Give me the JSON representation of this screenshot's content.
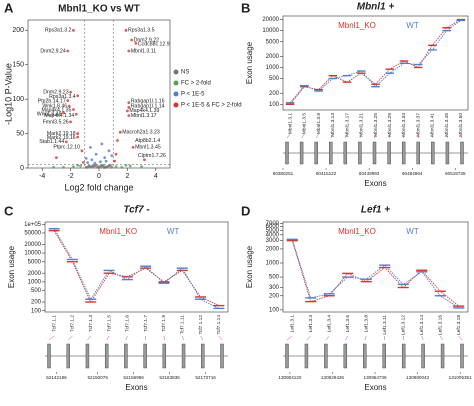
{
  "chart_data": [
    {
      "type": "scatter",
      "panel": "A",
      "title": "Mbnl1_KO vs WT",
      "x_label": "Log2 fold change",
      "y_label": "-Log10 P-Value",
      "xlim": [
        -5,
        5
      ],
      "xticks": [
        -4,
        -2,
        0,
        2,
        4
      ],
      "ylim": [
        0,
        215
      ],
      "yticks": [
        0,
        50,
        100,
        150,
        200
      ],
      "vlines": [
        -1,
        1
      ],
      "hline": 5,
      "series": [
        {
          "name": "NS",
          "color": "#777777",
          "x": [
            -0.8,
            -0.5,
            -0.3,
            -0.1,
            0.1,
            0.3,
            0.5,
            0.7,
            -0.6,
            0.4,
            -0.2,
            0.2,
            0.6,
            -0.9,
            0.9,
            -0.4,
            0.0,
            0.8,
            -0.7,
            0.35
          ],
          "values": [
            1,
            2,
            3,
            1,
            2,
            4,
            1,
            3,
            2,
            1,
            4,
            3,
            2,
            1,
            1,
            3,
            2,
            4,
            3,
            1
          ]
        },
        {
          "name": "FC > 2-fold",
          "color": "#5aa05a",
          "x": [
            -2.5,
            -1.8,
            -1.3,
            -3.2,
            1.2,
            1.6,
            2.2,
            3.0,
            -1.5,
            1.9
          ],
          "values": [
            1,
            2,
            3,
            1,
            2,
            1,
            3,
            2,
            4,
            4
          ]
        },
        {
          "name": "P < 1E-5",
          "color": "#4f7fd0",
          "x": [
            -0.8,
            -0.5,
            -0.2,
            0.1,
            0.4,
            0.7,
            -0.6,
            0.5,
            0.9,
            -0.9,
            0.2,
            -0.3
          ],
          "values": [
            8,
            12,
            20,
            9,
            15,
            25,
            30,
            10,
            18,
            14,
            35,
            7
          ]
        },
        {
          "name": "P < 1E-5 & FC > 2-fold",
          "color": "#d9342b",
          "x": [
            -1.8,
            1.9,
            2.3,
            2.6,
            2.1,
            -2.2,
            -2.0,
            -1.5,
            -2.2,
            -2.1,
            -1.8,
            -2.5,
            -1.6,
            -2.0,
            2.1,
            2.1,
            2.0,
            2.1,
            -1.5,
            -1.5,
            1.5,
            1.3,
            -2.3,
            2.4,
            -1.2,
            1.2,
            -3.0,
            3.2,
            1.1,
            -1.1
          ],
          "values": [
            200,
            200,
            186,
            181,
            170,
            170,
            110,
            105,
            98,
            90,
            85,
            80,
            78,
            67,
            95,
            88,
            83,
            76,
            50,
            45,
            52,
            40,
            38,
            30,
            25,
            20,
            15,
            12,
            10,
            8
          ]
        }
      ],
      "annotations": [
        {
          "text": "Rps3a1.3.2",
          "x": -1.8,
          "y": 200
        },
        {
          "text": "Rps3a1.3.5",
          "x": 1.9,
          "y": 200
        },
        {
          "text": "Dnm2.9.22",
          "x": 2.3,
          "y": 186
        },
        {
          "text": "Ccdc88c.12.9",
          "x": 2.6,
          "y": 180
        },
        {
          "text": "Mbnl1.3.11",
          "x": 2.1,
          "y": 170
        },
        {
          "text": "Dnm2.9.24",
          "x": -2.2,
          "y": 170
        },
        {
          "text": "Dnm2.9.23",
          "x": -2.0,
          "y": 110
        },
        {
          "text": "Rps3a1.3.4",
          "x": -1.5,
          "y": 104
        },
        {
          "text": "Ptp2b.14.17",
          "x": -2.2,
          "y": 97
        },
        {
          "text": "Wnk1.8.46",
          "x": -2.1,
          "y": 90
        },
        {
          "text": "Map4k4.1.35",
          "x": -1.8,
          "y": 84
        },
        {
          "text": "Wnk1.8.48",
          "x": -2.5,
          "y": 78
        },
        {
          "text": "Map4k4.1.34",
          "x": -1.6,
          "y": 76
        },
        {
          "text": "Fmnl3.5.26",
          "x": -2.0,
          "y": 67
        },
        {
          "text": "Rabgap1l.1.16",
          "x": 2.1,
          "y": 97
        },
        {
          "text": "Rabgap1l.1.14",
          "x": 2.1,
          "y": 90
        },
        {
          "text": "Map4k4.1.39",
          "x": 2.0,
          "y": 83
        },
        {
          "text": "Mbnl1.3.17",
          "x": 2.1,
          "y": 76
        },
        {
          "text": "Mark2.19.18",
          "x": -1.5,
          "y": 50
        },
        {
          "text": "Mark2.19.16",
          "x": -1.5,
          "y": 44
        },
        {
          "text": "Macroh2a1.3.23",
          "x": 1.5,
          "y": 52
        },
        {
          "text": "Stab1.1.44",
          "x": -2.3,
          "y": 38
        },
        {
          "text": "Atp8b2.1.4",
          "x": 2.4,
          "y": 40
        },
        {
          "text": "Ptprc.12.10",
          "x": -1.2,
          "y": 30
        },
        {
          "text": "Mbnl1.3.45",
          "x": 2.4,
          "y": 30
        },
        {
          "text": "Clptm1.7.26",
          "x": 2.6,
          "y": 18
        }
      ]
    },
    {
      "type": "line",
      "panel": "B",
      "title": "Mbnl1 +",
      "x_label": "Exons",
      "y_label": "Exon usage",
      "log_y": true,
      "ylim": [
        70,
        25000
      ],
      "yticks": [
        100,
        200,
        500,
        1000,
        2000,
        5000,
        10000,
        20000
      ],
      "categories": [
        "Mbnl1.3.1",
        "Mbnl1.3.5",
        "Mbnl1.3.9",
        "Mbnl1.3.13",
        "Mbnl1.3.17",
        "Mbnl1.3.21",
        "Mbnl1.3.25",
        "Mbnl1.3.29",
        "Mbnl1.3.33",
        "Mbnl1.3.37",
        "Mbnl1.3.41",
        "Mbnl1.3.45",
        "Mbnl1.3.50"
      ],
      "series": [
        {
          "name": "Mbnl1_KO",
          "color": "#d9342b",
          "values": [
            100,
            300,
            250,
            600,
            400,
            700,
            350,
            900,
            1500,
            1000,
            4000,
            12000,
            20000
          ]
        },
        {
          "name": "WT",
          "color": "#4f7fd0",
          "values": [
            110,
            320,
            230,
            500,
            600,
            800,
            300,
            700,
            1300,
            1200,
            3000,
            10000,
            19000
          ]
        }
      ],
      "genome_xlim": [
        60380251,
        60530000
      ],
      "genome_xticks": [
        60380251,
        60415122,
        60449993,
        60484864,
        60519735
      ]
    },
    {
      "type": "line",
      "panel": "C",
      "title": "Tcf7 -",
      "x_label": "Exons",
      "y_label": "Exon usage",
      "log_y": true,
      "ylim": [
        90,
        120000
      ],
      "yticks": [
        100,
        200,
        500,
        1000,
        2000,
        5000,
        10000,
        20000,
        50000,
        {
          "value": 100000,
          "label": "1e+05"
        }
      ],
      "categories": [
        "Tcf7.1.1",
        "Tcf7.1.2",
        "Tcf7.1.3",
        "Tcf7.1.5",
        "Tcf7.1.6",
        "Tcf7.1.7",
        "Tcf7.1.9",
        "Tcf7.1.11",
        "Tcf7.1.12",
        "Tcf7.1.14"
      ],
      "series": [
        {
          "name": "Mbnl1_KO",
          "color": "#d9342b",
          "values": [
            60000,
            5000,
            200,
            2000,
            1500,
            3000,
            1000,
            2500,
            300,
            150
          ]
        },
        {
          "name": "WT",
          "color": "#4f7fd0",
          "values": [
            70000,
            6000,
            250,
            2500,
            1200,
            3500,
            900,
            3000,
            250,
            120
          ]
        }
      ],
      "genome_xlim": [
        52140000,
        52175000
      ],
      "genome_xticks": [
        52142196,
        52150076,
        52156956,
        52163836,
        52170716
      ]
    },
    {
      "type": "line",
      "panel": "D",
      "title": "Lef1 +",
      "x_label": "Exons",
      "y_label": "Exon usage",
      "log_y": true,
      "ylim": [
        90,
        7500
      ],
      "yticks": [
        100,
        200,
        300,
        500,
        1000,
        2000,
        3000,
        4000,
        5000,
        6000,
        7000
      ],
      "categories": [
        "Lef1.3.1",
        "Lef1.3.3",
        "Lef1.3.4",
        "Lef1.3.6",
        "Lef1.3.8",
        "Lef1.3.11",
        "Lef1.3.12",
        "Lef1.3.14",
        "Lef1.3.16",
        "Lef1.3.18"
      ],
      "series": [
        {
          "name": "Mbnl1_KO",
          "color": "#d9342b",
          "values": [
            3000,
            150,
            200,
            600,
            400,
            800,
            300,
            700,
            250,
            120
          ]
        },
        {
          "name": "WT",
          "color": "#4f7fd0",
          "values": [
            3200,
            180,
            220,
            500,
            450,
            900,
            350,
            650,
            200,
            110
          ]
        }
      ],
      "genome_xlim": [
        130900000,
        131010000
      ],
      "genome_xticks": [
        130904120,
        130929426,
        130954736,
        130980043,
        131005351
      ]
    }
  ]
}
